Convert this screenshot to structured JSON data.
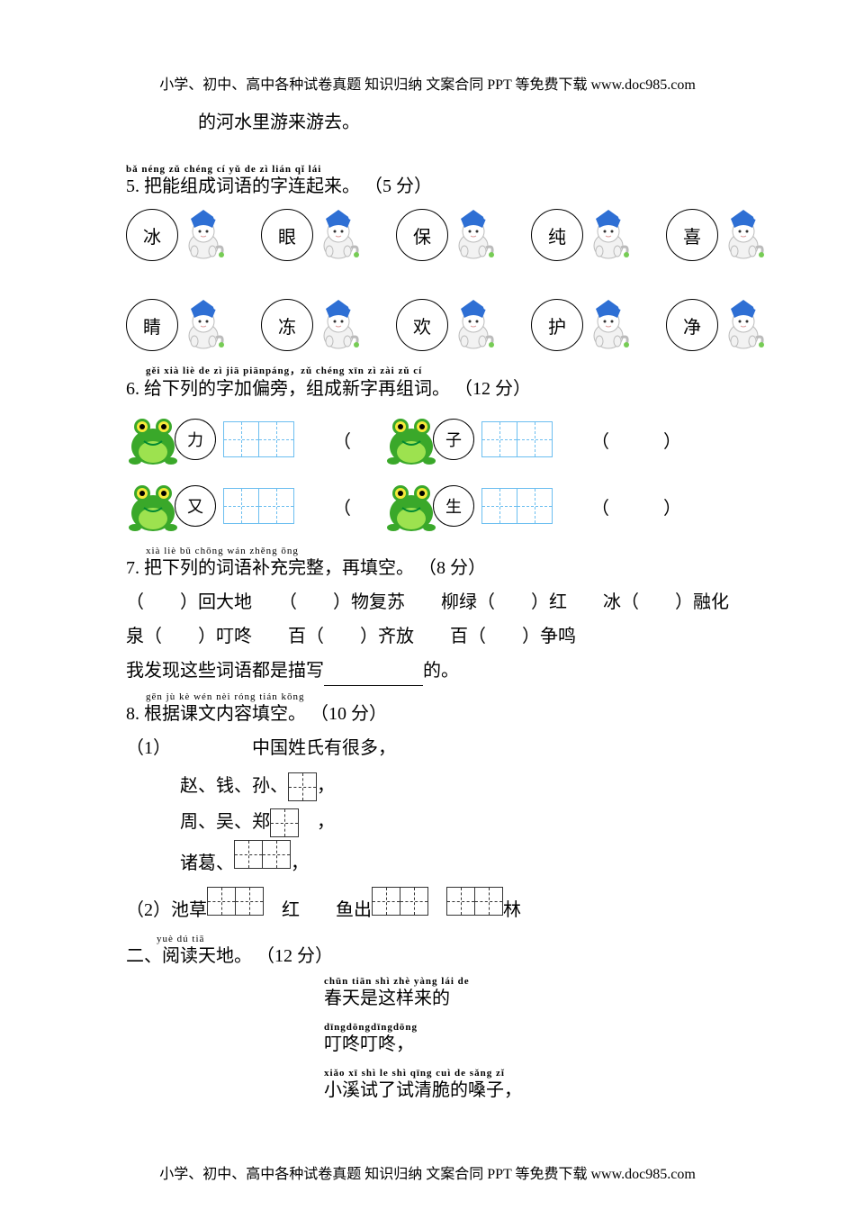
{
  "header": "小学、初中、高中各种试卷真题 知识归纳 文案合同 PPT 等免费下载   www.doc985.com",
  "footer": "小学、初中、高中各种试卷真题 知识归纳 文案合同 PPT 等免费下载   www.doc985.com",
  "intro_tail": "的河水里游来游去。",
  "q5": {
    "pinyin": "bǎ néng zǔ chéng cí yǔ de zì lián qǐ lái",
    "text": "5. 把能组成词语的字连起来。",
    "score": "（5 分）",
    "top_chars": [
      "冰",
      "眼",
      "保",
      "纯",
      "喜"
    ],
    "bottom_chars": [
      "睛",
      "冻",
      "欢",
      "护",
      "净"
    ]
  },
  "q6": {
    "pinyin": "gěi xià liè de zì jiā piānpáng，zǔ chéng xīn zì zài zǔ cí",
    "text": "6. 给下列的字加偏旁，组成新字再组词。",
    "score": "（12 分）",
    "chars": [
      "力",
      "子",
      "又",
      "生"
    ]
  },
  "q7": {
    "pinyin": "xià liè          bǔ chōng wán zhěng              ōng",
    "text": "7. 把下列的词语补充完整，再填空。",
    "score": "（8 分）",
    "items_line1": "（　　）回大地　　（　　）物复苏　　柳绿（　　）红　　冰（　　）融化",
    "items_line2": "泉（　　）叮咚　　百（　　）齐放　　百（　　）争鸣",
    "conclusion_pre": "我发现这些词语都是描写",
    "conclusion_post": "的。"
  },
  "q8": {
    "pinyin": "gēn jù kè wén nèi róng tián kōng",
    "text": "8. 根据课文内容填空。",
    "score": "（10 分）",
    "line1": "（1）　　　　　中国姓氏有很多，",
    "line2": "赵、钱、孙、",
    "line3": "周、吴、郑",
    "line4": "诸葛、",
    "line5_pre": "（2）池草",
    "line5_mid": "红　　鱼出",
    "line5_end": "林"
  },
  "section2": {
    "pinyin": "yuè dú tiā",
    "text": "二、阅读天地。",
    "score": "（12 分）"
  },
  "poem": {
    "title_pinyin": "chūn tiān shì zhè yàng lái de",
    "title": "春天是这样来的",
    "l1_pinyin": "dīngdōngdīngdōng",
    "l1": "叮咚叮咚，",
    "l2_pinyin": "xiǎo xī shì le shì qīng cuì de sǎng zǐ",
    "l2": "小溪试了试清脆的嗓子，"
  },
  "colors": {
    "cat_hat": "#2e6fd4",
    "cat_body": "#f2f2f2",
    "frog_body": "#3aa82a",
    "frog_belly": "#9de24f",
    "frog_eye_ring": "#f5e93a",
    "grid_blue": "#6bbef0"
  }
}
